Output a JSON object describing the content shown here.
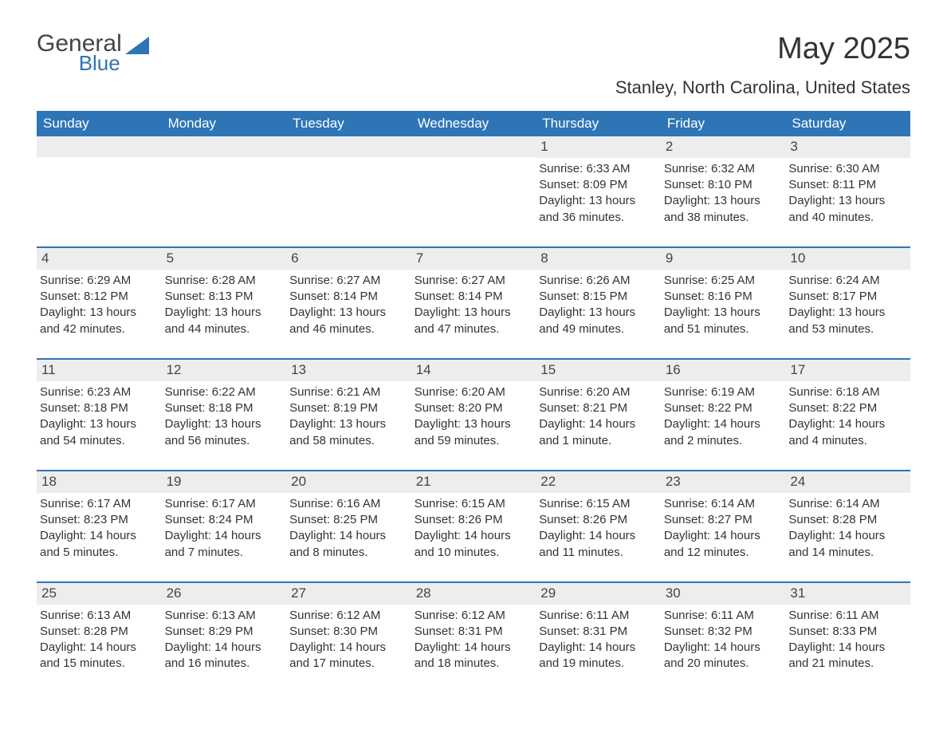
{
  "logo": {
    "text_general": "General",
    "text_blue": "Blue"
  },
  "header": {
    "month_title": "May 2025",
    "location": "Stanley, North Carolina, United States"
  },
  "colors": {
    "header_bg": "#2e75b6",
    "header_text": "#ffffff",
    "daynum_bg": "#ededed",
    "body_text": "#333333",
    "rule": "#2e75b6",
    "background": "#ffffff"
  },
  "weekdays": [
    "Sunday",
    "Monday",
    "Tuesday",
    "Wednesday",
    "Thursday",
    "Friday",
    "Saturday"
  ],
  "weeks": [
    [
      null,
      null,
      null,
      null,
      {
        "n": "1",
        "sunrise": "Sunrise: 6:33 AM",
        "sunset": "Sunset: 8:09 PM",
        "daylight": "Daylight: 13 hours and 36 minutes."
      },
      {
        "n": "2",
        "sunrise": "Sunrise: 6:32 AM",
        "sunset": "Sunset: 8:10 PM",
        "daylight": "Daylight: 13 hours and 38 minutes."
      },
      {
        "n": "3",
        "sunrise": "Sunrise: 6:30 AM",
        "sunset": "Sunset: 8:11 PM",
        "daylight": "Daylight: 13 hours and 40 minutes."
      }
    ],
    [
      {
        "n": "4",
        "sunrise": "Sunrise: 6:29 AM",
        "sunset": "Sunset: 8:12 PM",
        "daylight": "Daylight: 13 hours and 42 minutes."
      },
      {
        "n": "5",
        "sunrise": "Sunrise: 6:28 AM",
        "sunset": "Sunset: 8:13 PM",
        "daylight": "Daylight: 13 hours and 44 minutes."
      },
      {
        "n": "6",
        "sunrise": "Sunrise: 6:27 AM",
        "sunset": "Sunset: 8:14 PM",
        "daylight": "Daylight: 13 hours and 46 minutes."
      },
      {
        "n": "7",
        "sunrise": "Sunrise: 6:27 AM",
        "sunset": "Sunset: 8:14 PM",
        "daylight": "Daylight: 13 hours and 47 minutes."
      },
      {
        "n": "8",
        "sunrise": "Sunrise: 6:26 AM",
        "sunset": "Sunset: 8:15 PM",
        "daylight": "Daylight: 13 hours and 49 minutes."
      },
      {
        "n": "9",
        "sunrise": "Sunrise: 6:25 AM",
        "sunset": "Sunset: 8:16 PM",
        "daylight": "Daylight: 13 hours and 51 minutes."
      },
      {
        "n": "10",
        "sunrise": "Sunrise: 6:24 AM",
        "sunset": "Sunset: 8:17 PM",
        "daylight": "Daylight: 13 hours and 53 minutes."
      }
    ],
    [
      {
        "n": "11",
        "sunrise": "Sunrise: 6:23 AM",
        "sunset": "Sunset: 8:18 PM",
        "daylight": "Daylight: 13 hours and 54 minutes."
      },
      {
        "n": "12",
        "sunrise": "Sunrise: 6:22 AM",
        "sunset": "Sunset: 8:18 PM",
        "daylight": "Daylight: 13 hours and 56 minutes."
      },
      {
        "n": "13",
        "sunrise": "Sunrise: 6:21 AM",
        "sunset": "Sunset: 8:19 PM",
        "daylight": "Daylight: 13 hours and 58 minutes."
      },
      {
        "n": "14",
        "sunrise": "Sunrise: 6:20 AM",
        "sunset": "Sunset: 8:20 PM",
        "daylight": "Daylight: 13 hours and 59 minutes."
      },
      {
        "n": "15",
        "sunrise": "Sunrise: 6:20 AM",
        "sunset": "Sunset: 8:21 PM",
        "daylight": "Daylight: 14 hours and 1 minute."
      },
      {
        "n": "16",
        "sunrise": "Sunrise: 6:19 AM",
        "sunset": "Sunset: 8:22 PM",
        "daylight": "Daylight: 14 hours and 2 minutes."
      },
      {
        "n": "17",
        "sunrise": "Sunrise: 6:18 AM",
        "sunset": "Sunset: 8:22 PM",
        "daylight": "Daylight: 14 hours and 4 minutes."
      }
    ],
    [
      {
        "n": "18",
        "sunrise": "Sunrise: 6:17 AM",
        "sunset": "Sunset: 8:23 PM",
        "daylight": "Daylight: 14 hours and 5 minutes."
      },
      {
        "n": "19",
        "sunrise": "Sunrise: 6:17 AM",
        "sunset": "Sunset: 8:24 PM",
        "daylight": "Daylight: 14 hours and 7 minutes."
      },
      {
        "n": "20",
        "sunrise": "Sunrise: 6:16 AM",
        "sunset": "Sunset: 8:25 PM",
        "daylight": "Daylight: 14 hours and 8 minutes."
      },
      {
        "n": "21",
        "sunrise": "Sunrise: 6:15 AM",
        "sunset": "Sunset: 8:26 PM",
        "daylight": "Daylight: 14 hours and 10 minutes."
      },
      {
        "n": "22",
        "sunrise": "Sunrise: 6:15 AM",
        "sunset": "Sunset: 8:26 PM",
        "daylight": "Daylight: 14 hours and 11 minutes."
      },
      {
        "n": "23",
        "sunrise": "Sunrise: 6:14 AM",
        "sunset": "Sunset: 8:27 PM",
        "daylight": "Daylight: 14 hours and 12 minutes."
      },
      {
        "n": "24",
        "sunrise": "Sunrise: 6:14 AM",
        "sunset": "Sunset: 8:28 PM",
        "daylight": "Daylight: 14 hours and 14 minutes."
      }
    ],
    [
      {
        "n": "25",
        "sunrise": "Sunrise: 6:13 AM",
        "sunset": "Sunset: 8:28 PM",
        "daylight": "Daylight: 14 hours and 15 minutes."
      },
      {
        "n": "26",
        "sunrise": "Sunrise: 6:13 AM",
        "sunset": "Sunset: 8:29 PM",
        "daylight": "Daylight: 14 hours and 16 minutes."
      },
      {
        "n": "27",
        "sunrise": "Sunrise: 6:12 AM",
        "sunset": "Sunset: 8:30 PM",
        "daylight": "Daylight: 14 hours and 17 minutes."
      },
      {
        "n": "28",
        "sunrise": "Sunrise: 6:12 AM",
        "sunset": "Sunset: 8:31 PM",
        "daylight": "Daylight: 14 hours and 18 minutes."
      },
      {
        "n": "29",
        "sunrise": "Sunrise: 6:11 AM",
        "sunset": "Sunset: 8:31 PM",
        "daylight": "Daylight: 14 hours and 19 minutes."
      },
      {
        "n": "30",
        "sunrise": "Sunrise: 6:11 AM",
        "sunset": "Sunset: 8:32 PM",
        "daylight": "Daylight: 14 hours and 20 minutes."
      },
      {
        "n": "31",
        "sunrise": "Sunrise: 6:11 AM",
        "sunset": "Sunset: 8:33 PM",
        "daylight": "Daylight: 14 hours and 21 minutes."
      }
    ]
  ]
}
